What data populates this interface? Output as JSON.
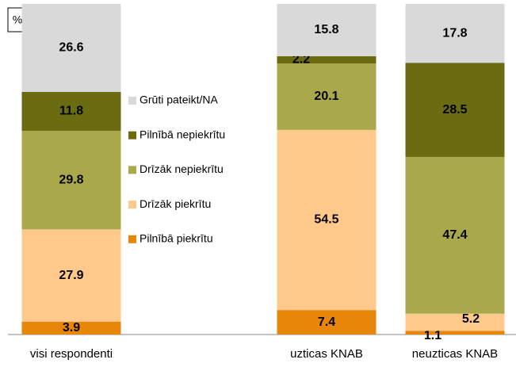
{
  "chart_data": {
    "type": "stacked_bar",
    "unit_label": "%",
    "categories": [
      "visi respondenti",
      "uzticas KNAB",
      "neuzticas KNAB"
    ],
    "ylim": [
      0,
      100
    ],
    "series": [
      {
        "name": "Pilnībā piekrītu",
        "color": "#e8860a",
        "values": [
          3.9,
          7.4,
          1.1
        ]
      },
      {
        "name": "Drīzāk piekrītu",
        "color": "#ffc98c",
        "values": [
          27.9,
          54.5,
          5.2
        ]
      },
      {
        "name": "Drīzāk nepiekrītu",
        "color": "#a9a94c",
        "values": [
          29.8,
          20.1,
          47.4
        ]
      },
      {
        "name": "Pilnībā nepiekrītu",
        "color": "#6b6b12",
        "values": [
          11.8,
          2.2,
          28.5
        ]
      },
      {
        "name": "Grūti pateikt/NA",
        "color": "#d9d9d9",
        "values": [
          26.6,
          15.8,
          17.8
        ]
      }
    ]
  }
}
